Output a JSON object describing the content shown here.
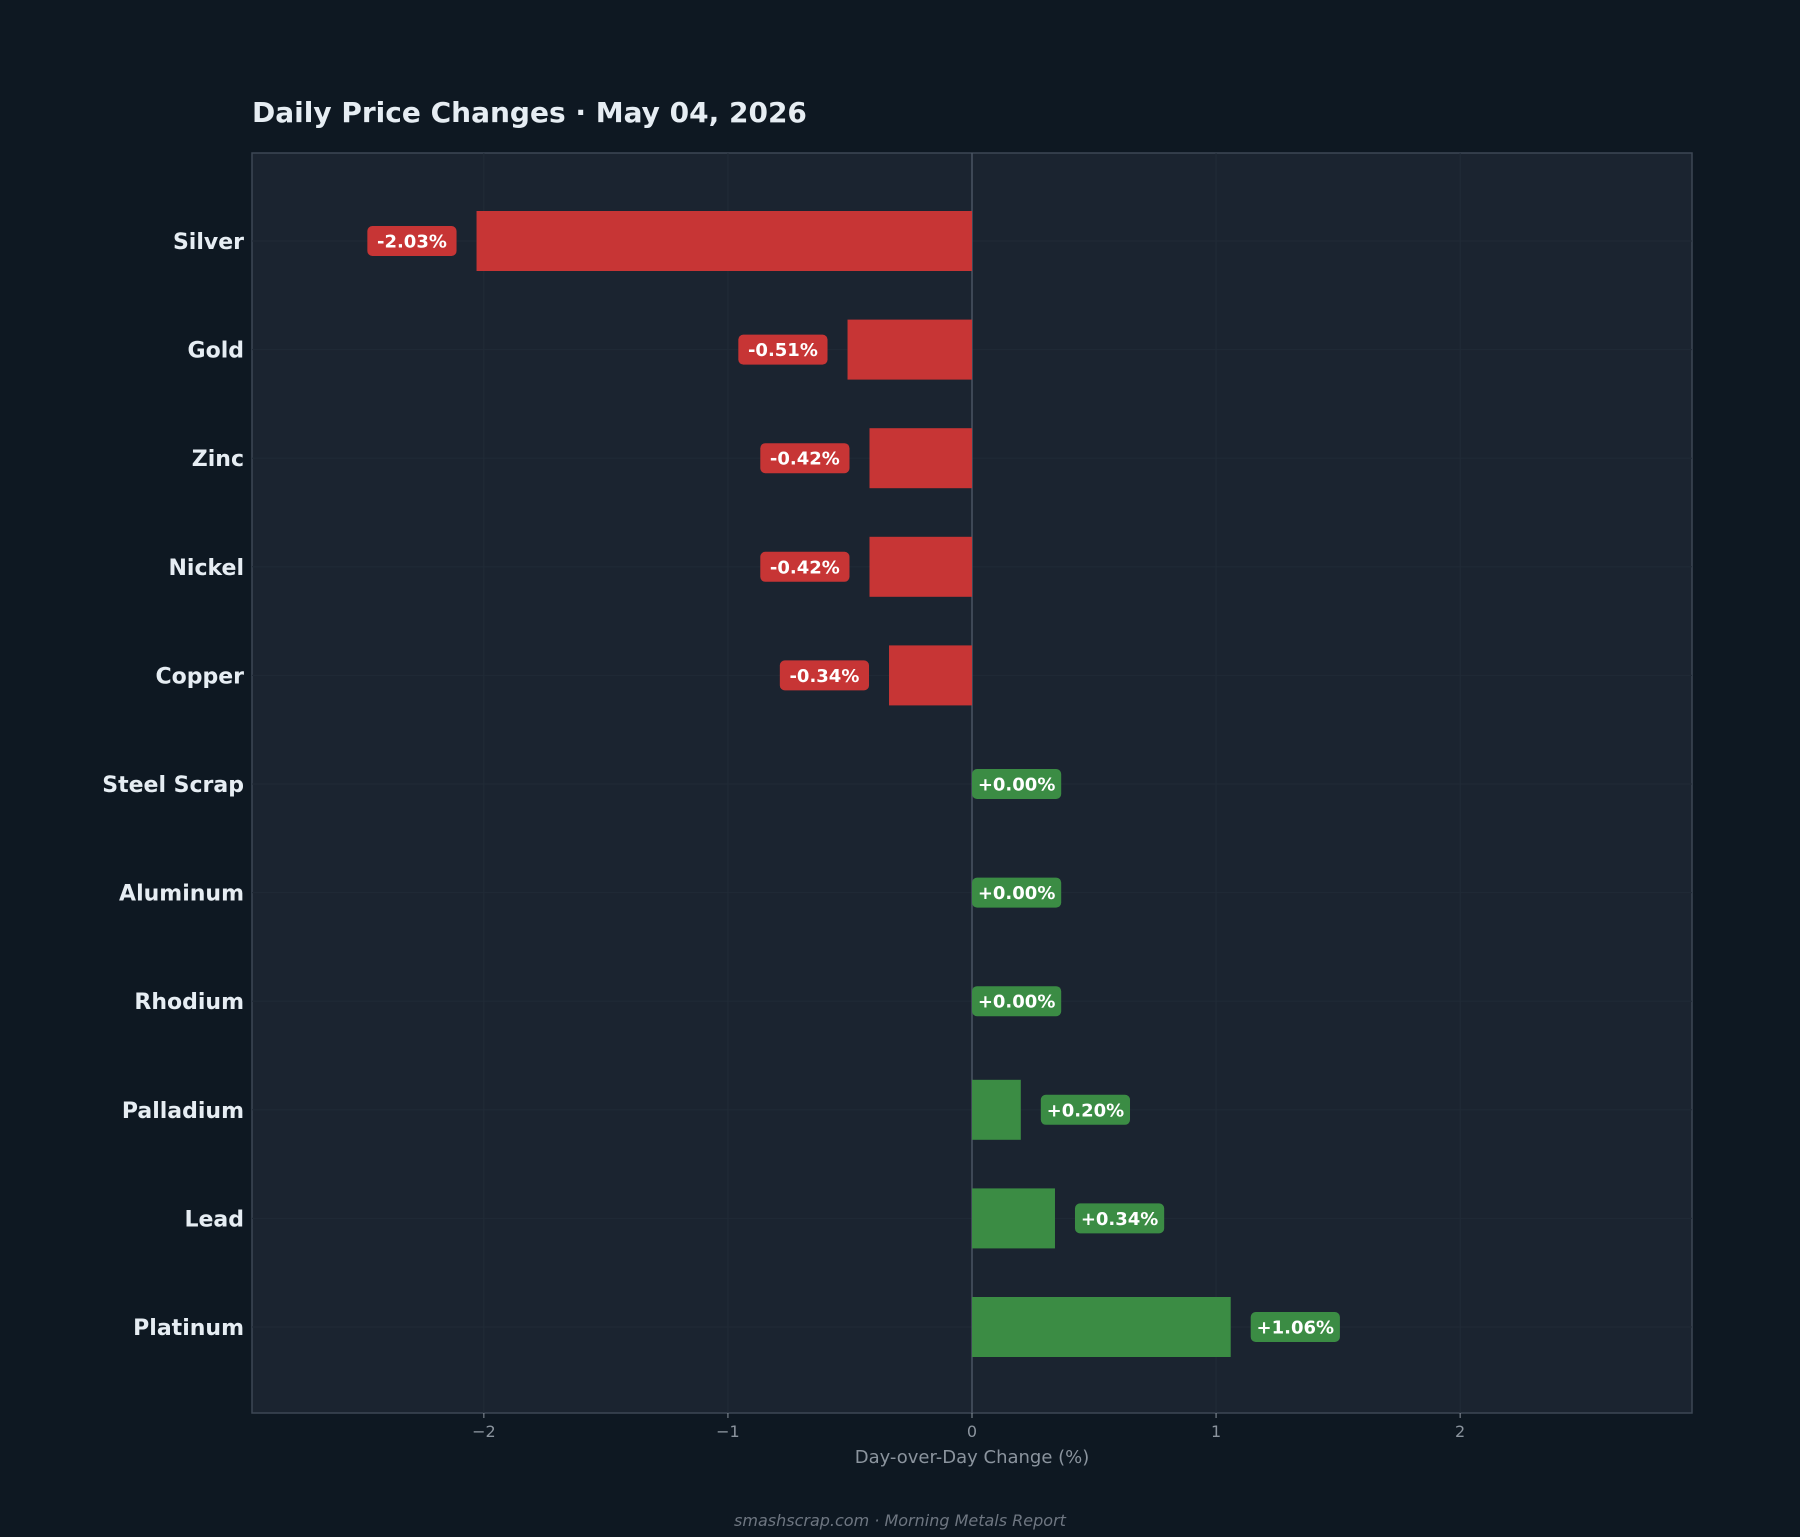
{
  "title": "Daily Price Changes  ·  May 04, 2026",
  "footer": "smashscrap.com  ·  Morning Metals Report",
  "colors": {
    "negative": "#c73535",
    "positive": "#3b8c44",
    "plot_bg": "#1b2430",
    "page_bg": "#0e1822",
    "zero_line": "#4a5563"
  },
  "chart_data": {
    "type": "bar",
    "orientation": "horizontal",
    "categories": [
      "Silver",
      "Gold",
      "Zinc",
      "Nickel",
      "Copper",
      "Steel Scrap",
      "Aluminum",
      "Rhodium",
      "Palladium",
      "Lead",
      "Platinum"
    ],
    "values": [
      -2.03,
      -0.51,
      -0.42,
      -0.42,
      -0.34,
      0.0,
      0.0,
      0.0,
      0.2,
      0.34,
      1.06
    ],
    "data_labels": [
      "-2.03%",
      "-0.51%",
      "-0.42%",
      "-0.42%",
      "-0.34%",
      "+0.00%",
      "+0.00%",
      "+0.00%",
      "+0.20%",
      "+0.34%",
      "+1.06%"
    ],
    "title": "Daily Price Changes  ·  May 04, 2026",
    "xlabel": "Day-over-Day Change (%)",
    "ylabel": "",
    "xlim": [
      -2.95,
      2.95
    ],
    "xticks": [
      -2,
      -1,
      0,
      1,
      2
    ],
    "xtick_labels": [
      "−2",
      "−1",
      "0",
      "1",
      "2"
    ],
    "grid": true
  }
}
